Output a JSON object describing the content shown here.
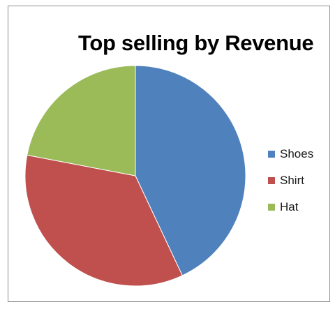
{
  "chart_data": {
    "type": "pie",
    "title": "Top selling by Revenue",
    "categories": [
      "Shoes",
      "Shirt",
      "Hat"
    ],
    "values": [
      43,
      35,
      22
    ],
    "colors": [
      "#4f81bd",
      "#c0504d",
      "#9bbb59"
    ],
    "legend_position": "right"
  }
}
